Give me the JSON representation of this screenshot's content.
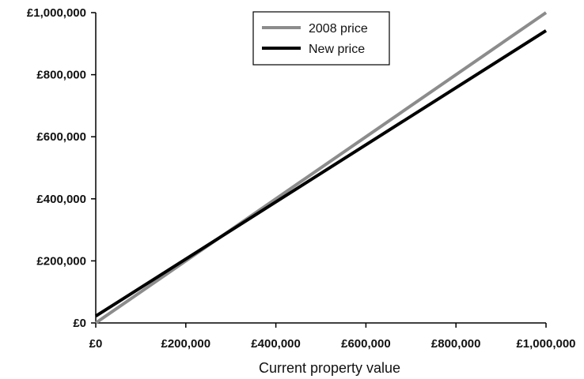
{
  "chart_data": {
    "type": "line",
    "title": "",
    "xlabel": "Current property value",
    "ylabel": "",
    "xlim": [
      0,
      1000000
    ],
    "ylim": [
      0,
      1000000
    ],
    "x_ticks": [
      0,
      200000,
      400000,
      600000,
      800000,
      1000000
    ],
    "x_tick_labels": [
      "£0",
      "£200,000",
      "£400,000",
      "£600,000",
      "£800,000",
      "£1,000,000"
    ],
    "y_ticks": [
      0,
      200000,
      400000,
      600000,
      800000,
      1000000
    ],
    "y_tick_labels": [
      "£0",
      "£200,000",
      "£400,000",
      "£600,000",
      "£800,000",
      "£1,000,000"
    ],
    "grid": false,
    "legend_position": "top-center",
    "series": [
      {
        "name": "2008 price",
        "color": "#8c8c8c",
        "x": [
          0,
          1000000
        ],
        "y": [
          0,
          1000000
        ]
      },
      {
        "name": "New price",
        "color": "#000000",
        "x": [
          0,
          1000000
        ],
        "y": [
          22000,
          942000
        ]
      }
    ]
  }
}
